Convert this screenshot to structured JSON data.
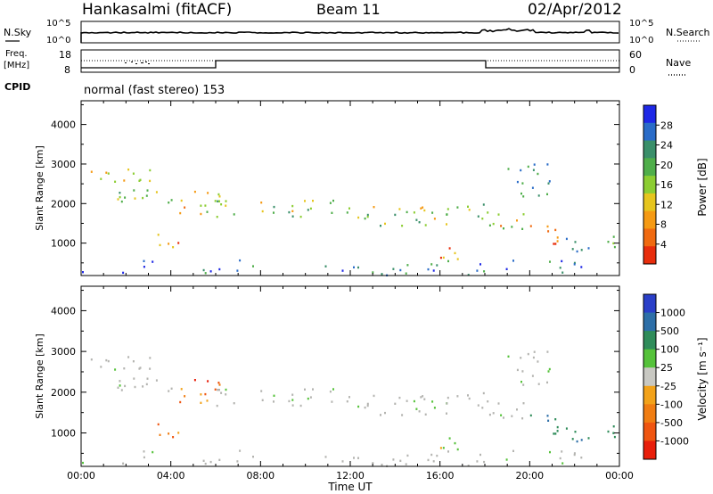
{
  "header": {
    "station": "Hankasalmi (fitACF)",
    "beam": "Beam 11",
    "date": "02/Apr/2012"
  },
  "noise_panel": {
    "left_label": "N.Sky",
    "right_label": "N.Search",
    "tick_top": "10^5",
    "tick_bottom": "10^0"
  },
  "freq_panel": {
    "left_label_1": "Freq.",
    "left_label_2": "[MHz]",
    "right_label": "Nave",
    "left_tick_top": "18",
    "left_tick_bottom": "8",
    "right_tick_top": "60",
    "right_tick_bottom": "0"
  },
  "cpid": {
    "label": "CPID",
    "text": "normal (fast stereo) 153"
  },
  "chart_data": [
    {
      "type": "heatmap",
      "panel": "power",
      "xlabel": "Time UT",
      "ylabel": "Slant Range [km]",
      "x_ticks": [
        "00:00",
        "04:00",
        "08:00",
        "12:00",
        "16:00",
        "20:00",
        "00:00"
      ],
      "y_ticks": [
        1000,
        2000,
        3000,
        4000
      ],
      "xlim_hours": [
        0,
        24
      ],
      "ylim_km": [
        180,
        4600
      ],
      "colorbar": {
        "label": "Power [dB]",
        "ticks": [
          4,
          8,
          12,
          16,
          20,
          24,
          28
        ],
        "colors": [
          "#1e28e6",
          "#2a6cc8",
          "#3a8f6a",
          "#4fae4a",
          "#8ccd32",
          "#e6c51e",
          "#f59a14",
          "#f06a10",
          "#e82d0c"
        ]
      }
    },
    {
      "type": "heatmap",
      "panel": "velocity",
      "xlabel": "Time UT",
      "ylabel": "Slant Range [km]",
      "x_ticks": [
        "00:00",
        "04:00",
        "08:00",
        "12:00",
        "16:00",
        "20:00",
        "00:00"
      ],
      "y_ticks": [
        1000,
        2000,
        3000,
        4000
      ],
      "xlim_hours": [
        0,
        24
      ],
      "ylim_km": [
        180,
        4600
      ],
      "colorbar": {
        "label": "Velocity [m s⁻¹]",
        "ticks": [
          1000,
          500,
          100,
          25,
          -25,
          -100,
          -500,
          -1000
        ],
        "colors": [
          "#2a3fc8",
          "#2d6fa8",
          "#2f8c5a",
          "#55c23a",
          "#c8c8c2",
          "#f2a21a",
          "#f07d12",
          "#ef5510",
          "#e81e0a"
        ]
      }
    }
  ],
  "colors": {
    "ground_scatter": "#b4b4b0",
    "axis": "#000000"
  }
}
